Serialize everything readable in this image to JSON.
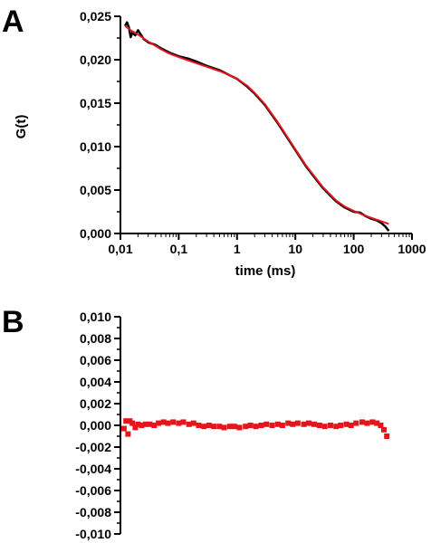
{
  "panel_labels": {
    "a": "A",
    "b": "B"
  },
  "colors": {
    "data": "#000000",
    "fit": "#e8141c",
    "residual": "#e8141c",
    "axis": "#000000"
  },
  "chart_data": [
    {
      "type": "line",
      "panel": "A",
      "xlabel": "time (ms)",
      "ylabel": "G(t)",
      "xscale": "log",
      "xlim": [
        0.01,
        1000
      ],
      "ylim": [
        0,
        0.025
      ],
      "xtick_values": [
        0.01,
        0.1,
        1,
        10,
        100,
        1000
      ],
      "xtick_labels": [
        "0,01",
        "0,1",
        "1",
        "10",
        "100",
        "1000"
      ],
      "ytick_values": [
        0,
        0.005,
        0.01,
        0.015,
        0.02,
        0.025
      ],
      "ytick_labels": [
        "0,000",
        "0,005",
        "0,010",
        "0,015",
        "0,020",
        "0,025"
      ],
      "grid": false,
      "series": [
        {
          "color": "#000000",
          "x": [
            0.012,
            0.013,
            0.014,
            0.015,
            0.016,
            0.018,
            0.02,
            0.025,
            0.03,
            0.04,
            0.05,
            0.07,
            0.1,
            0.15,
            0.2,
            0.3,
            0.5,
            0.7,
            1,
            1.5,
            2,
            3,
            5,
            7,
            10,
            15,
            20,
            30,
            50,
            70,
            100,
            130,
            160,
            200,
            250,
            300,
            350,
            400
          ],
          "y": [
            0.0239,
            0.0243,
            0.0237,
            0.0226,
            0.0231,
            0.0228,
            0.0234,
            0.0224,
            0.022,
            0.0217,
            0.0213,
            0.0208,
            0.0204,
            0.0201,
            0.0198,
            0.0193,
            0.0188,
            0.0183,
            0.0178,
            0.0169,
            0.0161,
            0.0148,
            0.0127,
            0.0112,
            0.0096,
            0.0078,
            0.0067,
            0.0052,
            0.0037,
            0.003,
            0.0025,
            0.0024,
            0.002,
            0.0017,
            0.0015,
            0.0012,
            0.0008,
            0.0003
          ]
        },
        {
          "color": "#e8141c",
          "x": [
            0.012,
            0.015,
            0.02,
            0.03,
            0.05,
            0.07,
            0.1,
            0.15,
            0.2,
            0.3,
            0.5,
            0.7,
            1,
            1.5,
            2,
            3,
            5,
            7,
            10,
            15,
            20,
            30,
            50,
            70,
            100,
            150,
            200,
            300,
            400
          ],
          "y": [
            0.0239,
            0.0234,
            0.0229,
            0.0221,
            0.0212,
            0.0207,
            0.0203,
            0.0199,
            0.0196,
            0.0192,
            0.0187,
            0.0183,
            0.0178,
            0.017,
            0.0162,
            0.0149,
            0.0128,
            0.0113,
            0.0097,
            0.0079,
            0.0068,
            0.0053,
            0.0038,
            0.0031,
            0.0026,
            0.0021,
            0.0018,
            0.0014,
            0.0011
          ]
        }
      ]
    },
    {
      "type": "scatter",
      "panel": "B",
      "xscale": "log",
      "xlim": [
        0.01,
        1000
      ],
      "ylim": [
        -0.01,
        0.01
      ],
      "ytick_values": [
        -0.01,
        -0.008,
        -0.006,
        -0.004,
        -0.002,
        0,
        0.002,
        0.004,
        0.006,
        0.008,
        0.01
      ],
      "ytick_labels": [
        "-0,010",
        "-0,008",
        "-0,006",
        "-0,004",
        "-0,002",
        "0,000",
        "0,002",
        "0,004",
        "0,006",
        "0,008",
        "0,010"
      ],
      "grid": false,
      "series": [
        {
          "color": "#e8141c",
          "x": [
            0.0115,
            0.0125,
            0.0135,
            0.0145,
            0.016,
            0.018,
            0.02,
            0.023,
            0.027,
            0.032,
            0.038,
            0.045,
            0.055,
            0.065,
            0.08,
            0.1,
            0.12,
            0.15,
            0.18,
            0.22,
            0.27,
            0.33,
            0.4,
            0.5,
            0.6,
            0.75,
            0.9,
            1.1,
            1.4,
            1.7,
            2.1,
            2.6,
            3.2,
            4,
            5,
            6,
            7.5,
            9,
            11,
            14,
            17,
            21,
            26,
            32,
            40,
            50,
            60,
            75,
            90,
            110,
            140,
            170,
            210,
            250,
            290,
            330,
            370
          ],
          "y": [
            -0.0003,
            0.0004,
            -0.0008,
            0.0004,
            0.0002,
            -0.0002,
            0.0001,
            0.0,
            0.0001,
            0.0001,
            0.0,
            0.0002,
            0.0003,
            0.0002,
            0.0003,
            0.0002,
            0.0003,
            0.0001,
            0.0002,
            0.0,
            -0.0001,
            0.0,
            -0.0001,
            -0.0001,
            -0.0002,
            -0.0001,
            -0.0001,
            -0.0002,
            -0.0001,
            0.0,
            -0.0001,
            0.0,
            0.0001,
            0.0,
            0.0001,
            0.0,
            0.0002,
            0.0001,
            0.0002,
            0.0001,
            0.0002,
            0.0001,
            0.0,
            -0.0001,
            0.0,
            -0.0001,
            0.0,
            0.0001,
            0.0,
            0.0002,
            0.0003,
            0.0002,
            0.0003,
            0.0002,
            0.0,
            -0.0004,
            -0.001
          ]
        }
      ]
    }
  ]
}
